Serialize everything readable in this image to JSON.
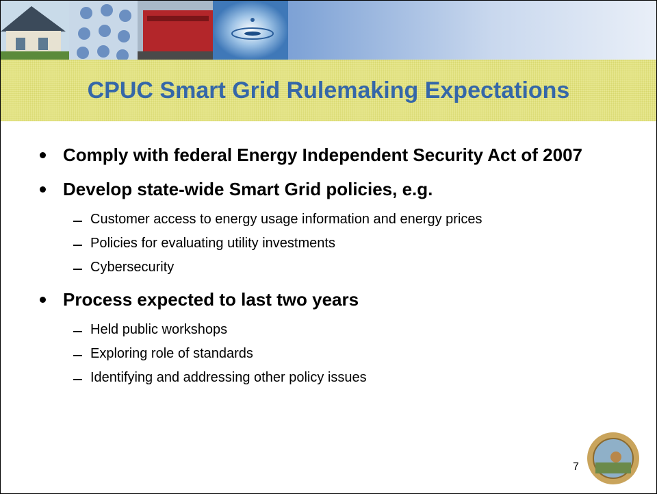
{
  "header": {
    "title": "CPUC Smart Grid Rulemaking Expectations"
  },
  "bullets": [
    {
      "text": "Comply with federal Energy Independent Security Act of 2007",
      "subitems": []
    },
    {
      "text": "Develop state-wide Smart Grid policies, e.g.",
      "subitems": [
        "Customer access to energy usage information and energy prices",
        "Policies for evaluating utility investments",
        "Cybersecurity"
      ]
    },
    {
      "text": "Process expected to last two years",
      "subitems": [
        "Held public workshops",
        "Exploring role of standards",
        "Identifying and addressing other policy issues"
      ]
    }
  ],
  "page_number": "7"
}
